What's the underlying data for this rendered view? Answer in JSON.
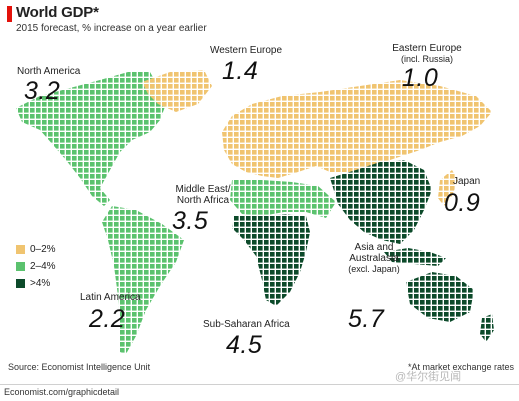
{
  "header": {
    "title": "World GDP*",
    "subtitle": "2015 forecast, % increase on a year earlier"
  },
  "colors": {
    "band_low": "#f0c470",
    "band_mid": "#5bc26e",
    "band_high": "#0c4a2a",
    "accent": "#e3120b"
  },
  "legend": [
    {
      "label": "0–2%",
      "color": "#f0c470"
    },
    {
      "label": "2–4%",
      "color": "#5bc26e"
    },
    {
      "label": ">4%",
      "color": "#0c4a2a"
    }
  ],
  "regions": {
    "north_america": {
      "name": "North America",
      "value": "3.2",
      "band": "2–4%"
    },
    "western_europe": {
      "name": "Western Europe",
      "value": "1.4",
      "band": "0–2%"
    },
    "eastern_europe": {
      "name": "Eastern Europe",
      "note": "(incl. Russia)",
      "value": "1.0",
      "band": "0–2%"
    },
    "japan": {
      "name": "Japan",
      "value": "0.9",
      "band": "0–2%"
    },
    "mena": {
      "name_line1": "Middle East/",
      "name_line2": "North Africa",
      "value": "3.5",
      "band": "2–4%"
    },
    "latin_america": {
      "name": "Latin America",
      "value": "2.2",
      "band": "2–4%"
    },
    "sub_saharan_africa": {
      "name": "Sub-Saharan Africa",
      "value": "4.5",
      "band": ">4%"
    },
    "asia": {
      "name_line1": "Asia and",
      "name_line2": "Australasia",
      "note": "(excl. Japan)",
      "value": "5.7",
      "band": ">4%"
    }
  },
  "source": "Source: Economist Intelligence Unit",
  "footnote": "*At market exchange rates",
  "footer_url": "Economist.com/graphicdetail",
  "watermark": "@华尔街见闻"
}
